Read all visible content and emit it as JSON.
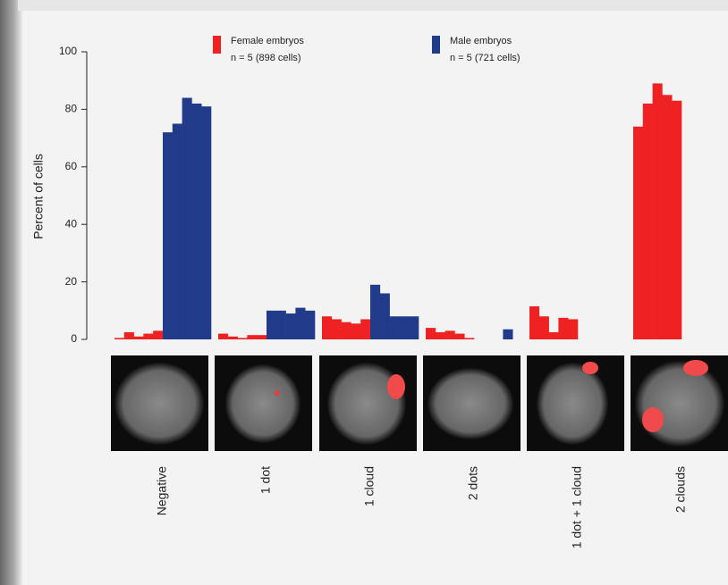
{
  "chart_data": {
    "type": "bar",
    "y_label": "Percent of cells",
    "categories": [
      "Negative",
      "1 dot",
      "1 cloud",
      "2 dots",
      "1 dot + 1 cloud",
      "2 clouds"
    ],
    "series": [
      {
        "name": "Female embryos",
        "detail": "n = 5 (898 cells)",
        "color": "#ee2222",
        "values": [
          [
            0.5,
            2.5,
            1,
            2,
            3
          ],
          [
            2,
            1,
            0.5,
            1.5,
            1.5
          ],
          [
            8,
            7,
            6,
            5.5,
            7
          ],
          [
            4,
            2.5,
            3,
            2,
            0.5
          ],
          [
            11.5,
            8,
            2.5,
            7.5,
            7
          ],
          [
            74,
            82,
            89,
            85,
            83
          ]
        ]
      },
      {
        "name": "Male embryos",
        "detail": "n = 5 (721 cells)",
        "color": "#223a8a",
        "values": [
          [
            72,
            75,
            84,
            82,
            81
          ],
          [
            10,
            10,
            9,
            11,
            10
          ],
          [
            19,
            16,
            8,
            8,
            8
          ],
          [
            0,
            0,
            0,
            3.5,
            0
          ],
          [
            0,
            0,
            0,
            0,
            0
          ],
          [
            0,
            0,
            0,
            0,
            0
          ]
        ]
      }
    ],
    "ylim": [
      0,
      100
    ],
    "yticks": [
      0,
      20,
      40,
      60,
      80,
      100
    ]
  }
}
